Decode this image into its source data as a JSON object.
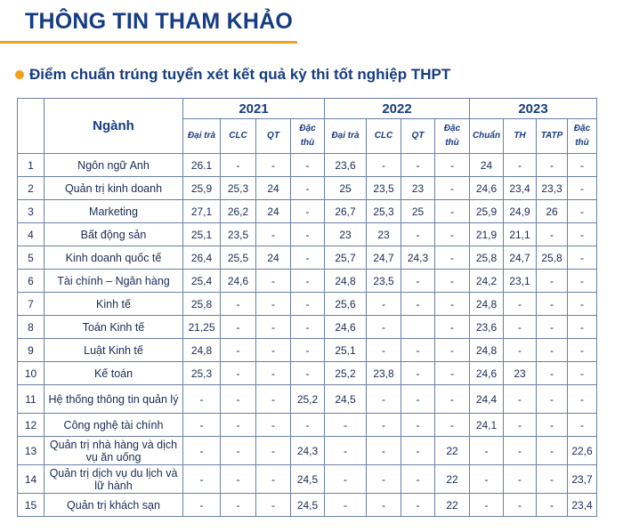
{
  "page": {
    "title": "THÔNG TIN THAM KHẢO",
    "subtitle": "Điểm chuẩn trúng tuyển xét kết quả kỳ thi tốt nghiệp THPT",
    "accent_color": "#f2a01e",
    "title_color": "#173c82"
  },
  "table": {
    "header_nganh": "Ngành",
    "years": [
      "2021",
      "2022",
      "2023"
    ],
    "subheaders": [
      "Đại trà",
      "CLC",
      "QT",
      "Đặc thù",
      "Đại trà",
      "CLC",
      "QT",
      "Đặc thù",
      "Chuẩn",
      "TH",
      "TATP",
      "Đặc thù"
    ],
    "rows": [
      {
        "stt": "1",
        "name": "Ngôn ngữ Anh",
        "values": [
          "26.1",
          "-",
          "-",
          "-",
          "23,6",
          "-",
          "-",
          "-",
          "24",
          "-",
          "-",
          "-"
        ]
      },
      {
        "stt": "2",
        "name": "Quản trị kinh doanh",
        "values": [
          "25,9",
          "25,3",
          "24",
          "-",
          "25",
          "23,5",
          "23",
          "-",
          "24,6",
          "23,4",
          "23,3",
          "-"
        ]
      },
      {
        "stt": "3",
        "name": "Marketing",
        "values": [
          "27,1",
          "26,2",
          "24",
          "-",
          "26,7",
          "25,3",
          "25",
          "-",
          "25,9",
          "24,9",
          "26",
          "-"
        ]
      },
      {
        "stt": "4",
        "name": "Bất động sản",
        "values": [
          "25,1",
          "23,5",
          "-",
          "-",
          "23",
          "23",
          "-",
          "-",
          "21,9",
          "21,1",
          "-",
          "-"
        ]
      },
      {
        "stt": "5",
        "name": "Kinh doanh quốc tế",
        "values": [
          "26,4",
          "25,5",
          "24",
          "-",
          "25,7",
          "24,7",
          "24,3",
          "-",
          "25,8",
          "24,7",
          "25,8",
          "-"
        ]
      },
      {
        "stt": "6",
        "name": "Tài chính – Ngân hàng",
        "values": [
          "25,4",
          "24,6",
          "-",
          "-",
          "24,8",
          "23,5",
          "-",
          "-",
          "24,2",
          "23,1",
          "-",
          "-"
        ]
      },
      {
        "stt": "7",
        "name": "Kinh tế",
        "values": [
          "25,8",
          "-",
          "-",
          "-",
          "25,6",
          "-",
          "-",
          "-",
          "24,8",
          "-",
          "-",
          "-"
        ]
      },
      {
        "stt": "8",
        "name": "Toán Kinh tế",
        "values": [
          "21,25",
          "-",
          "-",
          "-",
          "24,6",
          "-",
          "",
          "-",
          "23,6",
          "-",
          "-",
          "-"
        ]
      },
      {
        "stt": "9",
        "name": "Luật Kinh tế",
        "values": [
          "24,8",
          "-",
          "-",
          "-",
          "25,1",
          "-",
          "-",
          "-",
          "24,8",
          "-",
          "-",
          "-"
        ]
      },
      {
        "stt": "10",
        "name": "Kế toán",
        "values": [
          "25,3",
          "-",
          "-",
          "-",
          "25,2",
          "23,8",
          "-",
          "-",
          "24,6",
          "23",
          "-",
          "-"
        ]
      },
      {
        "stt": "11",
        "name": "Hệ thống thông tin quản lý",
        "values": [
          "-",
          "-",
          "-",
          "25,2",
          "24,5",
          "-",
          "-",
          "-",
          "24,4",
          "-",
          "-",
          "-"
        ]
      },
      {
        "stt": "12",
        "name": "Công nghệ tài chính",
        "values": [
          "-",
          "-",
          "-",
          "-",
          "-",
          "-",
          "-",
          "-",
          "24,1",
          "-",
          "-",
          "-"
        ]
      },
      {
        "stt": "13",
        "name": "Quản trị nhà hàng và dịch vụ ăn uống",
        "values": [
          "-",
          "-",
          "-",
          "24,3",
          "-",
          "-",
          "-",
          "22",
          "-",
          "-",
          "-",
          "22,6"
        ]
      },
      {
        "stt": "14",
        "name": "Quản trị dịch vụ du lịch và lữ hành",
        "values": [
          "-",
          "-",
          "-",
          "24,5",
          "-",
          "-",
          "-",
          "22",
          "-",
          "-",
          "-",
          "23,7"
        ]
      },
      {
        "stt": "15",
        "name": "Quản trị khách sạn",
        "values": [
          "-",
          "-",
          "-",
          "24,5",
          "-",
          "-",
          "-",
          "22",
          "-",
          "-",
          "-",
          "23,4"
        ]
      }
    ]
  }
}
